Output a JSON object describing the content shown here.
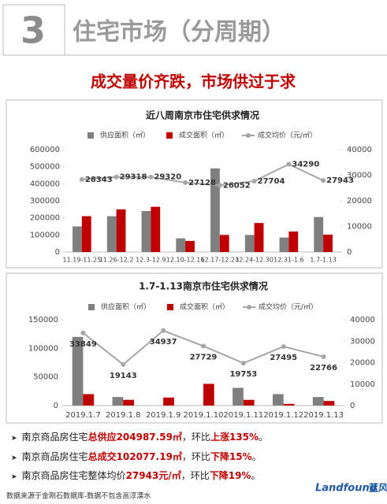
{
  "header": {
    "number": "3",
    "title": "住宅市场（分周期）"
  },
  "headline": "成交量价齐跌，市场供过于求",
  "chart_data": [
    {
      "type": "bar",
      "title": "近八周南京市住宅供求情况",
      "categories": [
        "11.19-11.25",
        "11.26-12.2",
        "12.3-12.9",
        "12.10-12.16",
        "12.17-12.23",
        "12.24-12.30",
        "12.31-1.6",
        "1.7-1.13"
      ],
      "series": [
        {
          "name": "供应面积（㎡）",
          "color": "#7f7f7f",
          "values": [
            150000,
            210000,
            240000,
            80000,
            490000,
            100000,
            85000,
            205000
          ]
        },
        {
          "name": "成交面积（㎡）",
          "color": "#c00000",
          "values": [
            210000,
            250000,
            265000,
            65000,
            100000,
            170000,
            120000,
            102000
          ]
        },
        {
          "name": "成交均价（元/㎡）",
          "color": "#a6a6a6",
          "axis": "y2",
          "type": "line",
          "values": [
            28343,
            29318,
            29320,
            27128,
            26052,
            27704,
            34290,
            27943
          ]
        }
      ],
      "ylim": [
        0,
        600000
      ],
      "yticks": [
        0,
        100000,
        200000,
        300000,
        400000,
        500000,
        600000
      ],
      "y2lim": [
        0,
        40000
      ],
      "y2ticks": [
        0,
        10000,
        20000,
        30000,
        40000
      ]
    },
    {
      "type": "bar",
      "title": "1.7-1.13南京市住宅供求情况",
      "categories": [
        "2019.1.7",
        "2019.1.8",
        "2019.1.9",
        "2019.1.10",
        "2019.1.11",
        "2019.1.12",
        "2019.1.13"
      ],
      "series": [
        {
          "name": "供应面积（㎡）",
          "color": "#7f7f7f",
          "values": [
            120000,
            15000,
            0,
            0,
            31000,
            20000,
            15000
          ]
        },
        {
          "name": "成交面积（㎡）",
          "color": "#c00000",
          "values": [
            20000,
            10000,
            14000,
            38000,
            10000,
            3000,
            8000
          ]
        },
        {
          "name": "成交均价（元/㎡）",
          "color": "#a6a6a6",
          "axis": "y2",
          "type": "line",
          "values": [
            33849,
            19143,
            34937,
            27729,
            19753,
            27495,
            22766
          ]
        }
      ],
      "ylim": [
        0,
        150000
      ],
      "yticks": [
        0,
        50000,
        100000,
        150000
      ],
      "y2lim": [
        0,
        40000
      ],
      "y2ticks": [
        0,
        10000,
        20000,
        30000,
        40000
      ]
    }
  ],
  "bullets": [
    [
      "南京商品房住宅",
      "总供应204987.59㎡",
      "，环比",
      "上涨135%",
      "。"
    ],
    [
      "南京商品房住宅",
      "总成交102077.19㎡",
      "，环比",
      "下降15%",
      "。"
    ],
    [
      "南京商品房住宅整体均价",
      "27943元/㎡",
      "，环比",
      "下降19%",
      "。"
    ]
  ],
  "footer": "数据来源于金刚石数据库-数据不包含高淳溧水",
  "logo": {
    "brand": "Landfound",
    "cn": "蓝风"
  }
}
